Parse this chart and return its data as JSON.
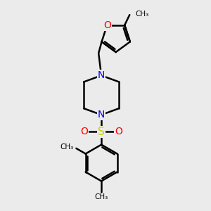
{
  "bg_color": "#ebebeb",
  "bond_color": "#000000",
  "bond_width": 1.8,
  "N_color": "#0000ff",
  "O_color": "#ff0000",
  "S_color": "#cccc00",
  "fig_width": 3.0,
  "fig_height": 3.0,
  "dpi": 100,
  "xlim": [
    0,
    10
  ],
  "ylim": [
    0,
    10
  ]
}
